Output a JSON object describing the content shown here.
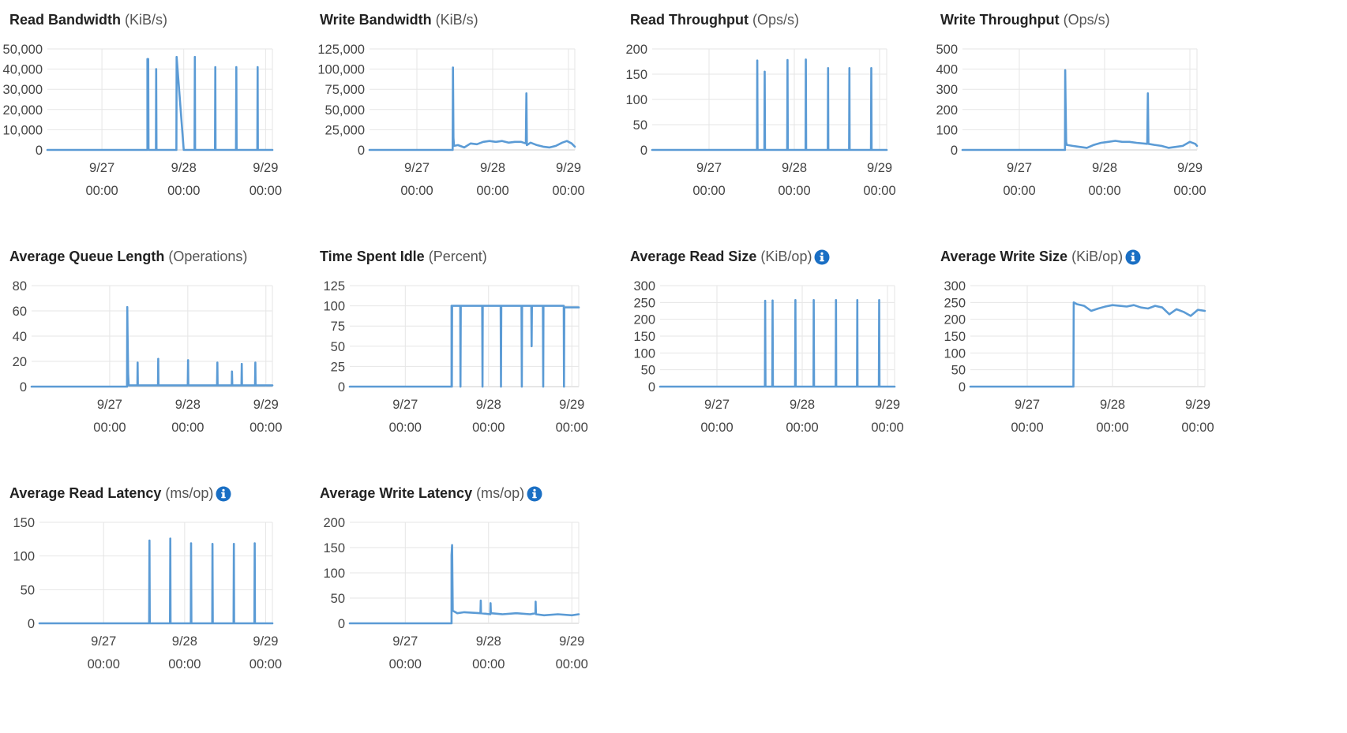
{
  "colors": {
    "series": "#5b9bd5",
    "grid": "#e6e6e6",
    "axis": "#cccccc",
    "info_icon": "#1a6fc4"
  },
  "x_tick_labels": [
    {
      "date": "9/27",
      "time": "00:00"
    },
    {
      "date": "9/28",
      "time": "00:00"
    },
    {
      "date": "9/29",
      "time": "00:00"
    }
  ],
  "chart_data": [
    {
      "type": "line",
      "title": "Read Bandwidth",
      "unit": "(KiB/s)",
      "info_icon": false,
      "ylim": [
        0,
        50000
      ],
      "yticks": [
        0,
        10000,
        20000,
        30000,
        40000,
        50000
      ],
      "ytick_labels": [
        "0",
        "10,000",
        "20,000",
        "30,000",
        "40,000",
        "50,000"
      ],
      "xlim": [
        "9/26 08:00",
        "9/29 02:00"
      ],
      "x_ticks": [
        "9/27 00:00",
        "9/28 00:00",
        "9/29 00:00"
      ],
      "series": [
        {
          "x": [
            "9/26 08:00",
            "9/27 13:20",
            "9/27 13:20",
            "9/27 13:25",
            "9/27 13:35",
            "9/27 13:40",
            "9/27 13:45",
            "9/27 15:50",
            "9/27 15:55",
            "9/27 16:00",
            "9/27 21:50",
            "9/27 21:55",
            "9/28 00:00",
            "9/28 03:10",
            "9/28 03:15",
            "9/28 03:20",
            "9/28 09:10",
            "9/28 09:15",
            "9/28 09:20",
            "9/28 15:20",
            "9/28 15:25",
            "9/28 15:30",
            "9/28 21:35",
            "9/28 21:40",
            "9/28 21:45",
            "9/29 02:00"
          ],
          "y": [
            0,
            0,
            45000,
            30000,
            45000,
            500,
            0,
            0,
            40000,
            0,
            0,
            46000,
            0,
            0,
            46000,
            0,
            0,
            41000,
            0,
            0,
            41000,
            0,
            0,
            41000,
            0,
            0
          ]
        }
      ]
    },
    {
      "type": "line",
      "title": "Write Bandwidth",
      "unit": "(KiB/s)",
      "info_icon": false,
      "ylim": [
        0,
        125000
      ],
      "yticks": [
        0,
        25000,
        50000,
        75000,
        100000,
        125000
      ],
      "ytick_labels": [
        "0",
        "25,000",
        "50,000",
        "75,000",
        "100,000",
        "125,000"
      ],
      "xlim": [
        "9/26 09:00",
        "9/29 02:00"
      ],
      "x_ticks": [
        "9/27 00:00",
        "9/28 00:00",
        "9/29 00:00"
      ],
      "series": [
        {
          "x": [
            "9/26 09:00",
            "9/27 11:20",
            "9/27 11:25",
            "9/27 11:30",
            "9/27 11:35",
            "9/27 11:45",
            "9/27 13:00",
            "9/27 15:00",
            "9/27 17:00",
            "9/27 19:00",
            "9/27 21:00",
            "9/27 23:00",
            "9/28 01:00",
            "9/28 03:00",
            "9/28 05:00",
            "9/28 07:00",
            "9/28 09:00",
            "9/28 10:30",
            "9/28 10:40",
            "9/28 10:50",
            "9/28 12:00",
            "9/28 14:00",
            "9/28 16:00",
            "9/28 18:00",
            "9/28 20:00",
            "9/28 22:00",
            "9/28 23:30",
            "9/29 01:00",
            "9/29 02:00"
          ],
          "y": [
            0,
            0,
            102000,
            60000,
            15000,
            5000,
            6000,
            3000,
            8000,
            7000,
            10000,
            11000,
            10000,
            11000,
            9000,
            10000,
            10000,
            8000,
            70000,
            6000,
            9000,
            6000,
            4000,
            3000,
            5000,
            9000,
            11000,
            8000,
            4000
          ]
        }
      ]
    },
    {
      "type": "line",
      "title": "Read Throughput",
      "unit": "(Ops/s)",
      "info_icon": false,
      "ylim": [
        0,
        200
      ],
      "yticks": [
        0,
        50,
        100,
        150,
        200
      ],
      "ytick_labels": [
        "0",
        "50",
        "100",
        "150",
        "200"
      ],
      "xlim": [
        "9/26 08:00",
        "9/29 02:00"
      ],
      "x_ticks": [
        "9/27 00:00",
        "9/28 00:00",
        "9/29 00:00"
      ],
      "series": [
        {
          "x": [
            "9/26 08:00",
            "9/27 13:30",
            "9/27 13:35",
            "9/27 13:40",
            "9/27 15:35",
            "9/27 15:40",
            "9/27 15:45",
            "9/27 22:00",
            "9/27 22:05",
            "9/27 22:10",
            "9/28 03:10",
            "9/28 03:15",
            "9/28 03:20",
            "9/28 09:25",
            "9/28 09:30",
            "9/28 09:35",
            "9/28 15:25",
            "9/28 15:30",
            "9/28 15:35",
            "9/28 21:35",
            "9/28 21:40",
            "9/28 21:45",
            "9/29 02:00"
          ],
          "y": [
            0,
            0,
            177,
            0,
            0,
            155,
            0,
            0,
            178,
            0,
            0,
            179,
            0,
            0,
            162,
            0,
            0,
            162,
            0,
            0,
            162,
            0,
            0
          ]
        }
      ]
    },
    {
      "type": "line",
      "title": "Write Throughput",
      "unit": "(Ops/s)",
      "info_icon": false,
      "ylim": [
        0,
        500
      ],
      "yticks": [
        0,
        100,
        200,
        300,
        400,
        500
      ],
      "ytick_labels": [
        "0",
        "100",
        "200",
        "300",
        "400",
        "500"
      ],
      "xlim": [
        "9/26 08:00",
        "9/29 02:00"
      ],
      "x_ticks": [
        "9/27 00:00",
        "9/28 00:00",
        "9/29 00:00"
      ],
      "series": [
        {
          "x": [
            "9/26 08:00",
            "9/27 12:50",
            "9/27 12:55",
            "9/27 13:00",
            "9/27 13:10",
            "9/27 13:20",
            "9/27 15:00",
            "9/27 17:00",
            "9/27 19:00",
            "9/27 21:00",
            "9/27 23:00",
            "9/28 01:00",
            "9/28 03:00",
            "9/28 05:00",
            "9/28 07:00",
            "9/28 09:00",
            "9/28 12:00",
            "9/28 12:10",
            "9/28 12:20",
            "9/28 14:00",
            "9/28 16:00",
            "9/28 18:00",
            "9/28 20:00",
            "9/28 22:00",
            "9/29 00:00",
            "9/29 01:30",
            "9/29 02:00"
          ],
          "y": [
            0,
            0,
            395,
            260,
            40,
            25,
            20,
            15,
            10,
            25,
            35,
            40,
            45,
            40,
            40,
            35,
            30,
            280,
            30,
            25,
            20,
            10,
            15,
            20,
            40,
            30,
            20
          ]
        }
      ]
    },
    {
      "type": "line",
      "title": "Average Queue Length",
      "unit": "(Operations)",
      "info_icon": false,
      "ylim": [
        0,
        80
      ],
      "yticks": [
        0,
        20,
        40,
        60,
        80
      ],
      "ytick_labels": [
        "0",
        "20",
        "40",
        "60",
        "80"
      ],
      "xlim": [
        "9/26 00:00",
        "9/29 02:00"
      ],
      "x_ticks": [
        "9/27 00:00",
        "9/28 00:00",
        "9/29 00:00"
      ],
      "series": [
        {
          "x": [
            "9/26 00:00",
            "9/27 05:20",
            "9/27 05:25",
            "9/27 05:30",
            "9/27 05:40",
            "9/27 05:50",
            "9/27 08:30",
            "9/27 08:35",
            "9/27 08:40",
            "9/27 14:50",
            "9/27 14:55",
            "9/27 15:00",
            "9/28 00:00",
            "9/28 00:05",
            "9/28 00:10",
            "9/28 09:00",
            "9/28 09:05",
            "9/28 09:10",
            "9/28 13:30",
            "9/28 13:35",
            "9/28 13:40",
            "9/28 16:30",
            "9/28 16:35",
            "9/28 16:40",
            "9/28 20:40",
            "9/28 20:45",
            "9/28 20:50",
            "9/29 02:00"
          ],
          "y": [
            0,
            0,
            63,
            40,
            10,
            1,
            1,
            19,
            1,
            1,
            22,
            1,
            1,
            21,
            1,
            1,
            19,
            1,
            1,
            12,
            1,
            1,
            18,
            1,
            1,
            19,
            1,
            1
          ]
        }
      ]
    },
    {
      "type": "line",
      "title": "Time Spent Idle",
      "unit": "(Percent)",
      "info_icon": false,
      "ylim": [
        0,
        125
      ],
      "yticks": [
        0,
        25,
        50,
        75,
        100,
        125
      ],
      "ytick_labels": [
        "0",
        "25",
        "50",
        "75",
        "100",
        "125"
      ],
      "xlim": [
        "9/26 08:00",
        "9/29 02:00"
      ],
      "x_ticks": [
        "9/27 00:00",
        "9/28 00:00",
        "9/29 00:00"
      ],
      "series": [
        {
          "x": [
            "9/26 08:00",
            "9/27 13:20",
            "9/27 13:20",
            "9/27 13:25",
            "9/27 13:30",
            "9/27 15:50",
            "9/27 15:55",
            "9/27 16:00",
            "9/27 22:10",
            "9/27 22:15",
            "9/27 22:20",
            "9/28 03:30",
            "9/28 03:35",
            "9/28 03:40",
            "9/28 09:30",
            "9/28 09:35",
            "9/28 09:40",
            "9/28 12:20",
            "9/28 12:25",
            "9/28 12:30",
            "9/28 15:40",
            "9/28 15:45",
            "9/28 15:50",
            "9/28 21:40",
            "9/28 21:45",
            "9/28 21:50",
            "9/29 02:00"
          ],
          "y": [
            0,
            0,
            100,
            0,
            100,
            100,
            0,
            100,
            100,
            0,
            100,
            100,
            0,
            100,
            100,
            0,
            100,
            100,
            50,
            100,
            100,
            0,
            100,
            100,
            0,
            98,
            98
          ]
        }
      ]
    },
    {
      "type": "line",
      "title": "Average Read Size",
      "unit": "(KiB/op)",
      "info_icon": true,
      "ylim": [
        0,
        300
      ],
      "yticks": [
        0,
        50,
        100,
        150,
        200,
        250,
        300
      ],
      "ytick_labels": [
        "0",
        "50",
        "100",
        "150",
        "200",
        "250",
        "300"
      ],
      "xlim": [
        "9/26 08:00",
        "9/29 02:00"
      ],
      "x_ticks": [
        "9/27 00:00",
        "9/28 00:00",
        "9/29 00:00"
      ],
      "series": [
        {
          "x": [
            "9/26 08:00",
            "9/27 13:30",
            "9/27 13:35",
            "9/27 13:40",
            "9/27 15:35",
            "9/27 15:40",
            "9/27 15:45",
            "9/27 22:00",
            "9/27 22:05",
            "9/27 22:10",
            "9/28 03:10",
            "9/28 03:15",
            "9/28 03:20",
            "9/28 09:25",
            "9/28 09:30",
            "9/28 09:35",
            "9/28 15:25",
            "9/28 15:30",
            "9/28 15:35",
            "9/28 21:35",
            "9/28 21:40",
            "9/28 21:45",
            "9/29 02:00"
          ],
          "y": [
            0,
            0,
            255,
            0,
            0,
            256,
            0,
            0,
            257,
            0,
            0,
            257,
            0,
            0,
            257,
            0,
            0,
            257,
            0,
            0,
            257,
            0,
            0
          ]
        }
      ]
    },
    {
      "type": "line",
      "title": "Average Write Size",
      "unit": "(KiB/op)",
      "info_icon": true,
      "ylim": [
        0,
        300
      ],
      "yticks": [
        0,
        50,
        100,
        150,
        200,
        250,
        300
      ],
      "ytick_labels": [
        "0",
        "50",
        "100",
        "150",
        "200",
        "250",
        "300"
      ],
      "xlim": [
        "9/26 08:00",
        "9/29 02:00"
      ],
      "x_ticks": [
        "9/27 00:00",
        "9/28 00:00",
        "9/29 00:00"
      ],
      "series": [
        {
          "x": [
            "9/26 08:00",
            "9/27 13:00",
            "9/27 13:05",
            "9/27 14:00",
            "9/27 16:00",
            "9/27 18:00",
            "9/27 20:00",
            "9/27 22:00",
            "9/28 00:00",
            "9/28 02:00",
            "9/28 04:00",
            "9/28 06:00",
            "9/28 08:00",
            "9/28 10:00",
            "9/28 12:00",
            "9/28 14:00",
            "9/28 16:00",
            "9/28 18:00",
            "9/28 20:00",
            "9/28 22:00",
            "9/29 00:00",
            "9/29 02:00"
          ],
          "y": [
            0,
            0,
            250,
            245,
            240,
            225,
            232,
            238,
            242,
            240,
            238,
            242,
            235,
            232,
            240,
            235,
            215,
            230,
            222,
            210,
            228,
            225
          ]
        }
      ]
    },
    {
      "type": "line",
      "title": "Average Read Latency",
      "unit": "(ms/op)",
      "info_icon": true,
      "ylim": [
        0,
        150
      ],
      "yticks": [
        0,
        50,
        100,
        150
      ],
      "ytick_labels": [
        "0",
        "50",
        "100",
        "150"
      ],
      "xlim": [
        "9/26 05:00",
        "9/29 02:00"
      ],
      "x_ticks": [
        "9/27 00:00",
        "9/28 00:00",
        "9/29 00:00"
      ],
      "series": [
        {
          "x": [
            "9/26 05:00",
            "9/27 13:30",
            "9/27 13:35",
            "9/27 13:40",
            "9/27 19:40",
            "9/27 19:45",
            "9/27 19:50",
            "9/28 01:50",
            "9/28 01:55",
            "9/28 02:00",
            "9/28 08:10",
            "9/28 08:15",
            "9/28 08:20",
            "9/28 14:30",
            "9/28 14:35",
            "9/28 14:40",
            "9/28 20:40",
            "9/28 20:45",
            "9/28 20:50",
            "9/29 02:00"
          ],
          "y": [
            0,
            0,
            123,
            0,
            0,
            126,
            0,
            0,
            119,
            0,
            0,
            118,
            0,
            0,
            118,
            0,
            0,
            119,
            0,
            0
          ]
        }
      ]
    },
    {
      "type": "line",
      "title": "Average Write Latency",
      "unit": "(ms/op)",
      "info_icon": true,
      "ylim": [
        0,
        200
      ],
      "yticks": [
        0,
        50,
        100,
        150,
        200
      ],
      "ytick_labels": [
        "0",
        "50",
        "100",
        "150",
        "200"
      ],
      "xlim": [
        "9/26 08:00",
        "9/29 02:00"
      ],
      "x_ticks": [
        "9/27 00:00",
        "9/28 00:00",
        "9/29 00:00"
      ],
      "series": [
        {
          "x": [
            "9/26 08:00",
            "9/27 13:20",
            "9/27 13:20",
            "9/27 13:30",
            "9/27 13:40",
            "9/27 15:00",
            "9/27 17:00",
            "9/27 21:40",
            "9/27 21:45",
            "9/27 21:50",
            "9/28 00:30",
            "9/28 00:35",
            "9/28 00:40",
            "9/28 04:00",
            "9/28 08:00",
            "9/28 12:00",
            "9/28 13:30",
            "9/28 13:35",
            "9/28 13:40",
            "9/28 16:00",
            "9/28 20:00",
            "9/29 00:00",
            "9/29 02:00"
          ],
          "y": [
            0,
            0,
            135,
            155,
            25,
            20,
            22,
            20,
            45,
            20,
            18,
            40,
            20,
            18,
            20,
            18,
            20,
            43,
            18,
            16,
            18,
            16,
            18
          ]
        }
      ]
    }
  ]
}
